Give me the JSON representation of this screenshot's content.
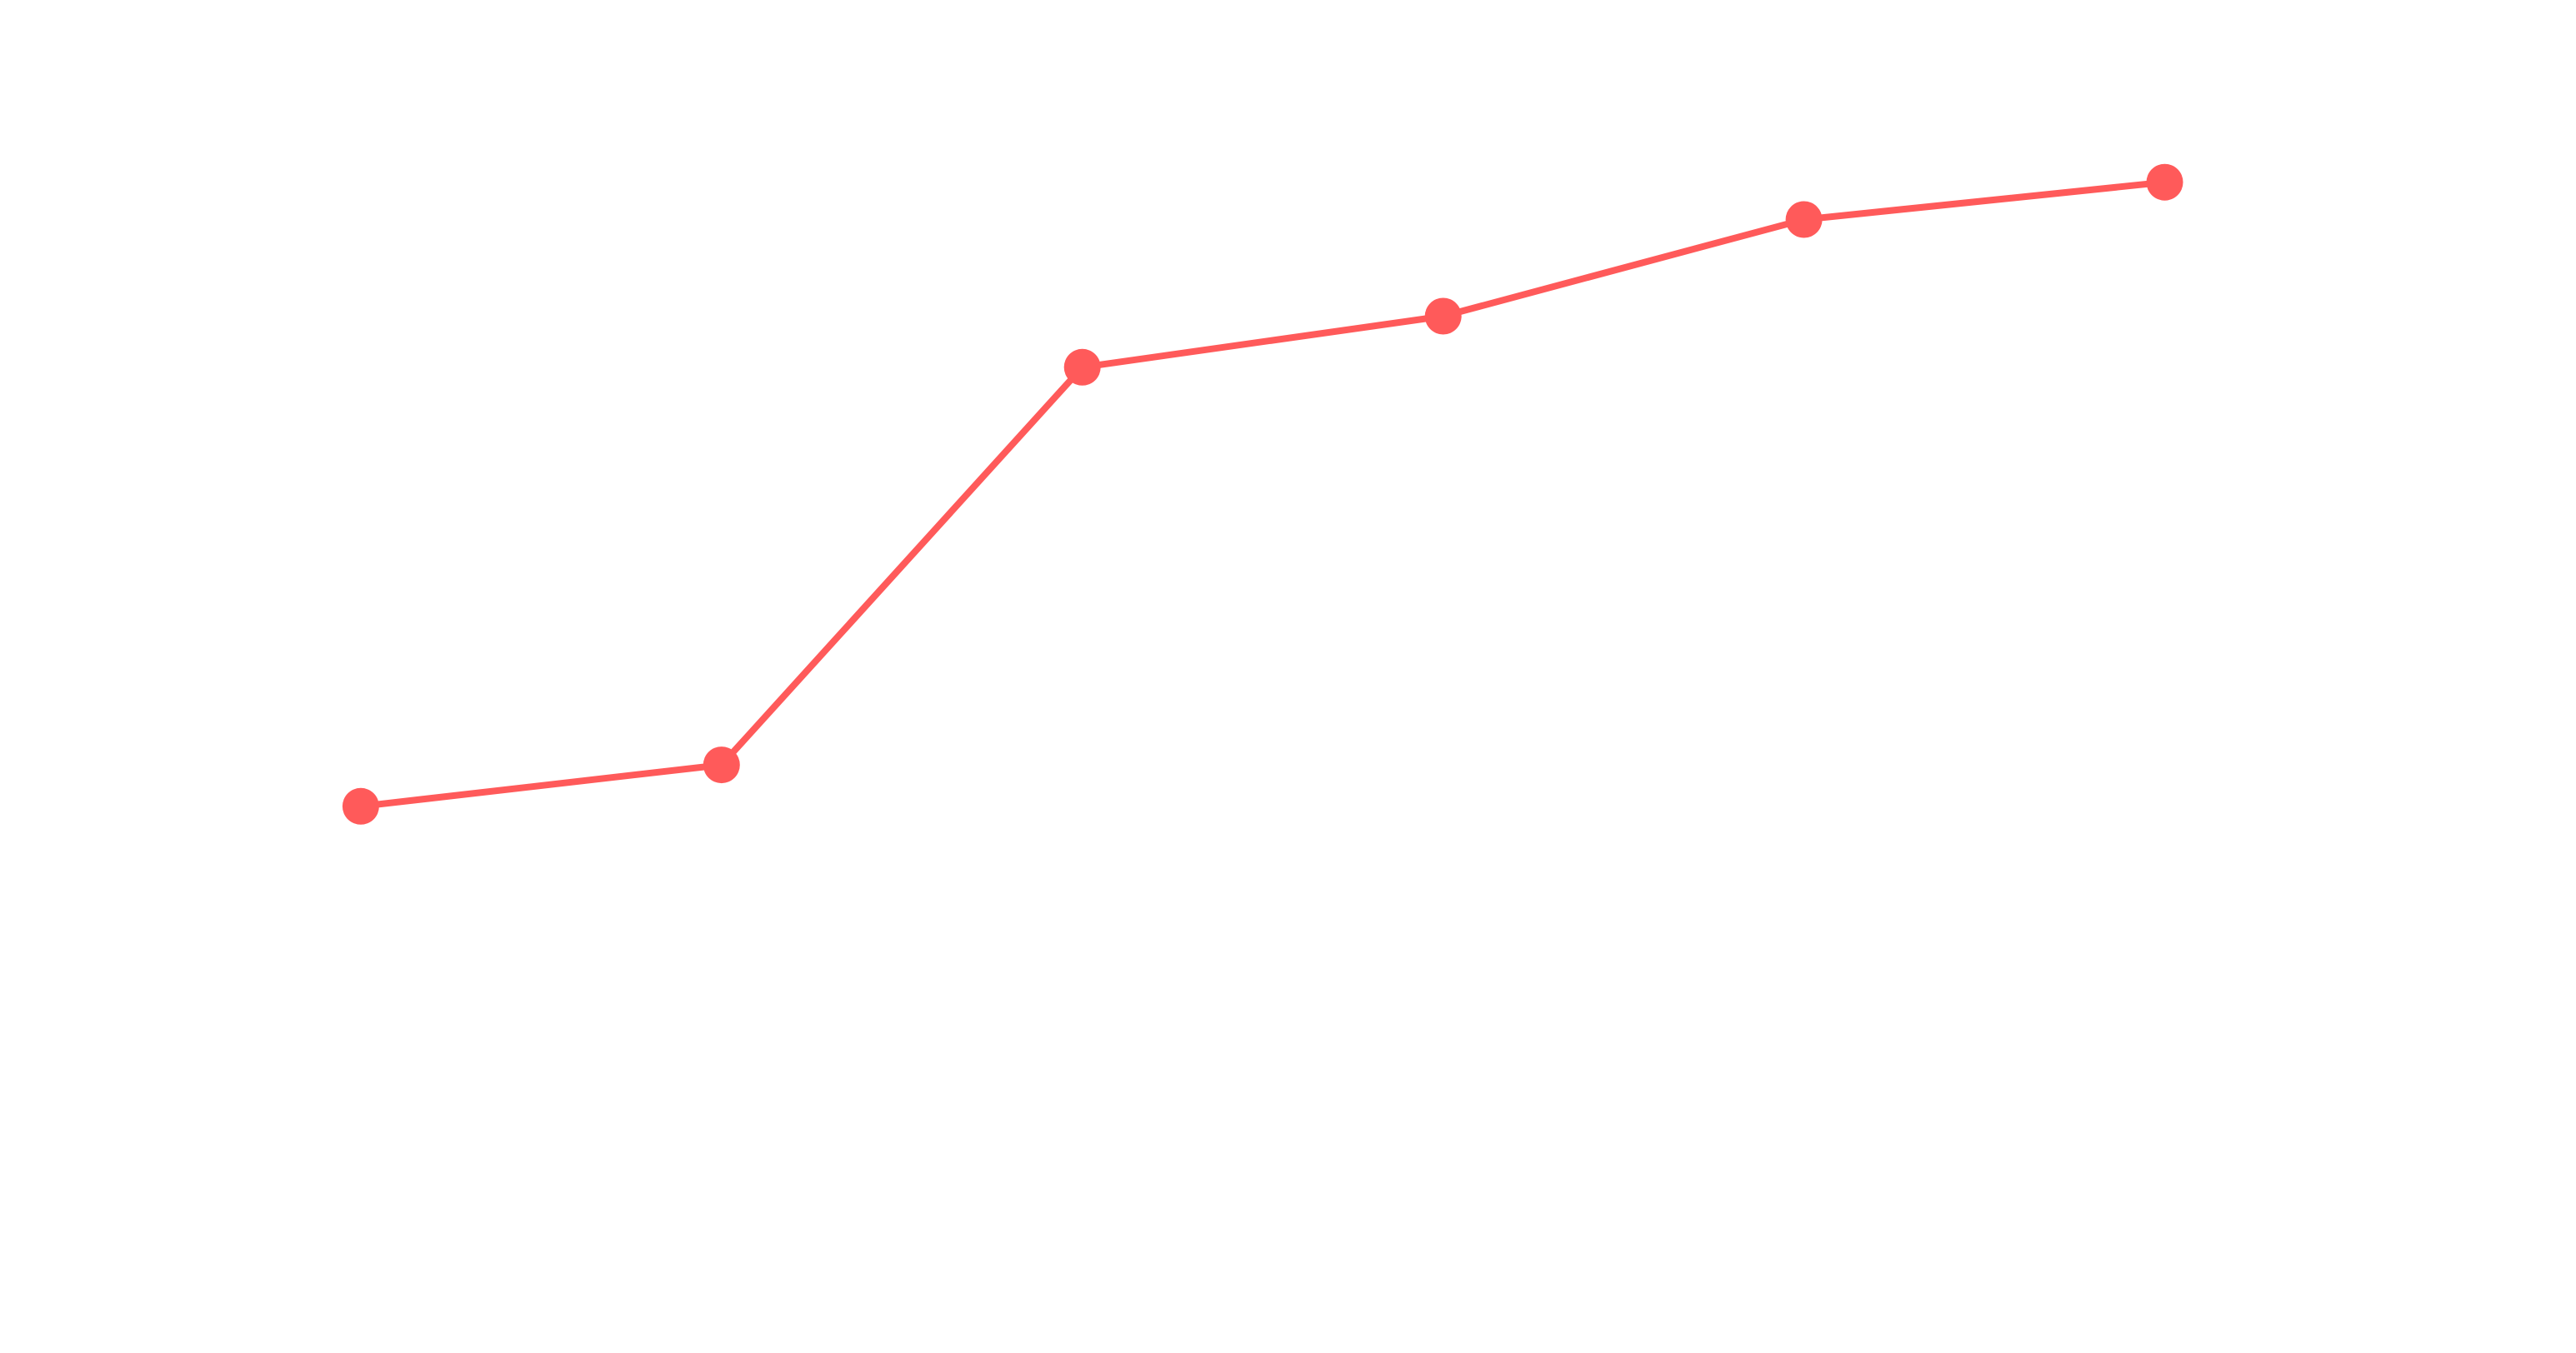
{
  "chart_data": {
    "type": "line",
    "title": "",
    "xlabel": "",
    "ylabel": "",
    "x": [
      1,
      2,
      3,
      4,
      5,
      6
    ],
    "series": [
      {
        "values": [
          31.6,
          34.6,
          63.4,
          67.1,
          74.1,
          76.8
        ],
        "color": "#ff5a5a"
      }
    ],
    "xlim": [
      0,
      7.14
    ],
    "ylim": [
      -8,
      90
    ],
    "grid": false,
    "legend": "none",
    "markers": true
  }
}
